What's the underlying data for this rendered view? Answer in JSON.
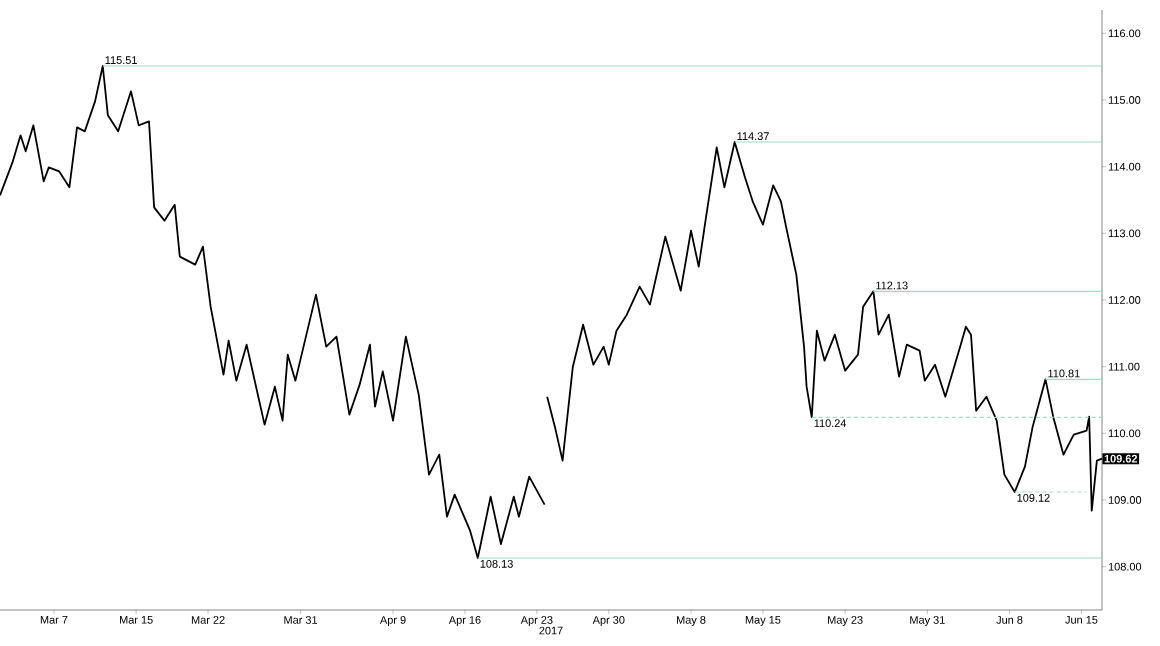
{
  "chart_data": {
    "type": "line",
    "xlabel": "2017",
    "xlim": [
      "2017-03-01T18:00",
      "2017-06-17T00:00"
    ],
    "ylim": [
      107.35,
      116.35
    ],
    "xticks": [
      {
        "value": "2017-03-07",
        "label": "Mar 7"
      },
      {
        "value": "2017-03-15",
        "label": "Mar 15"
      },
      {
        "value": "2017-03-22",
        "label": "Mar 22"
      },
      {
        "value": "2017-03-31",
        "label": "Mar 31"
      },
      {
        "value": "2017-04-09",
        "label": "Apr 9"
      },
      {
        "value": "2017-04-16",
        "label": "Apr 16"
      },
      {
        "value": "2017-04-23",
        "label": "Apr 23"
      },
      {
        "value": "2017-04-30",
        "label": "Apr 30"
      },
      {
        "value": "2017-05-08",
        "label": "May 8"
      },
      {
        "value": "2017-05-15",
        "label": "May 15"
      },
      {
        "value": "2017-05-23",
        "label": "May 23"
      },
      {
        "value": "2017-05-31",
        "label": "May 31"
      },
      {
        "value": "2017-06-08",
        "label": "Jun 8"
      },
      {
        "value": "2017-06-15",
        "label": "Jun 15"
      }
    ],
    "yticks": [
      {
        "value": 108,
        "label": "108.00"
      },
      {
        "value": 109,
        "label": "109.00"
      },
      {
        "value": 110,
        "label": "110.00"
      },
      {
        "value": 111,
        "label": "111.00"
      },
      {
        "value": 112,
        "label": "112.00"
      },
      {
        "value": 113,
        "label": "113.00"
      },
      {
        "value": 114,
        "label": "114.00"
      },
      {
        "value": 115,
        "label": "115.00"
      },
      {
        "value": 116,
        "label": "116.00"
      }
    ],
    "series": [
      {
        "color": "#000000",
        "line_style": "solid",
        "x": [
          "2017-03-01T18:00",
          "2017-03-03T00:00",
          "2017-03-03T18:00",
          "2017-03-04T06:00",
          "2017-03-05T00:00",
          "2017-03-06T00:00",
          "2017-03-06T12:00",
          "2017-03-07T12:00",
          "2017-03-08T12:00",
          "2017-03-09T06:00",
          "2017-03-10T00:00",
          "2017-03-11T00:00",
          "2017-03-11T18:00",
          "2017-03-12T06:00",
          "2017-03-13T06:00",
          "2017-03-14T12:00",
          "2017-03-15T06:00",
          "2017-03-16T06:00",
          "2017-03-16T18:00",
          "2017-03-17T18:00",
          "2017-03-18T18:00",
          "2017-03-19T06:00",
          "2017-03-20T18:00",
          "2017-03-21T12:00",
          "2017-03-22T06:00",
          "2017-03-23T12:00",
          "2017-03-24T00:00",
          "2017-03-24T18:00",
          "2017-03-25T18:00",
          "2017-03-27T12:00",
          "2017-03-28T12:00",
          "2017-03-29T06:00",
          "2017-03-29T18:00",
          "2017-03-30T12:00",
          "2017-04-01T12:00",
          "2017-04-02T12:00",
          "2017-04-03T12:00",
          "2017-04-04T18:00",
          "2017-04-05T18:00",
          "2017-04-06T18:00",
          "2017-04-07T06:00",
          "2017-04-08T00:00",
          "2017-04-09T00:00",
          "2017-04-10T06:00",
          "2017-04-11T12:00",
          "2017-04-12T12:00",
          "2017-04-13T12:00",
          "2017-04-14T06:00",
          "2017-04-15T00:00",
          "2017-04-16T12:00",
          "2017-04-17T06:00",
          "2017-04-18T12:00",
          "2017-04-19T12:00",
          "2017-04-20T18:00",
          "2017-04-21T06:00",
          "2017-04-22T06:00",
          "2017-04-23T18:00",
          "2017-04-23T21:00",
          "2017-04-24T00:00",
          "2017-04-24T18:00",
          "2017-04-25T12:00",
          "2017-04-26T12:00",
          "2017-04-27T12:00",
          "2017-04-28T12:00",
          "2017-04-29T12:00",
          "2017-04-30T00:00",
          "2017-04-30T18:00",
          "2017-05-01T18:00",
          "2017-05-03T00:00",
          "2017-05-04T00:00",
          "2017-05-05T12:00",
          "2017-05-07T00:00",
          "2017-05-08T00:00",
          "2017-05-08T18:00",
          "2017-05-09T12:00",
          "2017-05-10T12:00",
          "2017-05-11T06:00",
          "2017-05-12T06:00",
          "2017-05-13T06:00",
          "2017-05-14T00:00",
          "2017-05-15T00:00",
          "2017-05-16T00:00",
          "2017-05-16T18:00",
          "2017-05-17T06:00",
          "2017-05-18T06:00",
          "2017-05-19T00:00",
          "2017-05-19T06:00",
          "2017-05-19T18:00",
          "2017-05-20T06:00",
          "2017-05-21T00:00",
          "2017-05-22T00:00",
          "2017-05-23T00:00",
          "2017-05-24T06:00",
          "2017-05-24T18:00",
          "2017-05-25T18:00",
          "2017-05-26T06:00",
          "2017-05-27T06:00",
          "2017-05-28T06:00",
          "2017-05-29T00:00",
          "2017-05-30T06:00",
          "2017-05-30T18:00",
          "2017-05-31T18:00",
          "2017-06-01T18:00",
          "2017-06-03T06:00",
          "2017-06-03T18:00",
          "2017-06-04T06:00",
          "2017-06-04T18:00",
          "2017-06-05T18:00",
          "2017-06-06T18:00",
          "2017-06-07T12:00",
          "2017-06-08T12:00",
          "2017-06-09T12:00",
          "2017-06-10T06:00",
          "2017-06-11T12:00",
          "2017-06-12T06:00",
          "2017-06-13T06:00",
          "2017-06-14T06:00",
          "2017-06-15T12:00",
          "2017-06-15T18:00",
          "2017-06-16T00:00",
          "2017-06-16T12:00",
          "2017-06-17T00:00"
        ],
        "values": [
          113.57,
          114.08,
          114.47,
          114.23,
          114.62,
          113.78,
          113.99,
          113.93,
          113.69,
          114.59,
          114.53,
          114.98,
          115.51,
          114.77,
          114.53,
          115.13,
          114.62,
          114.68,
          113.39,
          113.19,
          113.43,
          112.65,
          112.53,
          112.8,
          111.9,
          110.88,
          111.39,
          110.79,
          111.33,
          110.13,
          110.7,
          110.19,
          111.18,
          110.79,
          112.08,
          111.3,
          111.45,
          110.28,
          110.73,
          111.33,
          110.4,
          110.93,
          110.19,
          111.45,
          110.58,
          109.38,
          109.68,
          108.75,
          109.08,
          108.54,
          108.13,
          109.05,
          108.34,
          109.05,
          108.75,
          109.35,
          108.93,
          null,
          110.55,
          110.1,
          109.59,
          111.0,
          111.63,
          111.03,
          111.3,
          111.03,
          111.54,
          111.78,
          112.2,
          111.93,
          112.95,
          112.14,
          113.04,
          112.5,
          113.28,
          114.29,
          113.69,
          114.37,
          113.84,
          113.48,
          113.13,
          113.72,
          113.48,
          113.1,
          112.38,
          111.3,
          110.7,
          110.24,
          111.54,
          111.09,
          111.48,
          110.94,
          111.18,
          111.9,
          112.13,
          111.48,
          111.78,
          110.85,
          111.33,
          111.24,
          110.79,
          111.03,
          110.55,
          111.33,
          111.6,
          111.48,
          110.34,
          110.55,
          110.19,
          109.38,
          109.12,
          109.5,
          110.1,
          110.81,
          110.25,
          109.68,
          109.98,
          110.04,
          110.25,
          108.84,
          109.59,
          109.62
        ]
      },
      {
        "type": "line",
        "color": "#a8d8c8",
        "line_style": "solid",
        "x": [
          "2017-03-11T18:00",
          "2017-06-17T00:00"
        ],
        "values": [
          115.51,
          115.51
        ]
      },
      {
        "type": "line",
        "color": "#a8d8c8",
        "line_style": "solid",
        "x": [
          "2017-05-12T06:00",
          "2017-06-17T00:00"
        ],
        "values": [
          114.37,
          114.37
        ]
      },
      {
        "type": "line",
        "color": "#a8d8c8",
        "line_style": "solid",
        "x": [
          "2017-05-25T18:00",
          "2017-06-17T00:00"
        ],
        "values": [
          112.13,
          112.13
        ]
      },
      {
        "type": "line",
        "color": "#a8d8c8",
        "line_style": "solid",
        "x": [
          "2017-06-11T12:00",
          "2017-06-17T00:00"
        ],
        "values": [
          110.81,
          110.81
        ]
      },
      {
        "type": "line",
        "color": "#a8d8c8",
        "line_style": "solid",
        "x": [
          "2017-04-17T06:00",
          "2017-06-17T00:00"
        ],
        "values": [
          108.13,
          108.13
        ]
      },
      {
        "type": "line",
        "color": "#a8d8c8",
        "line_style": "dashed",
        "x": [
          "2017-05-19T18:00",
          "2017-06-17T00:00"
        ],
        "values": [
          110.24,
          110.24
        ]
      },
      {
        "type": "line",
        "color": "#a8d8c8",
        "line_style": "dashed",
        "x": [
          "2017-06-08T12:00",
          "2017-06-15T12:00"
        ],
        "values": [
          109.12,
          109.12
        ]
      }
    ],
    "annotations": [
      {
        "text": "115.51",
        "x": "2017-03-11T18:00",
        "y": 115.51
      },
      {
        "text": "114.37",
        "x": "2017-05-12T06:00",
        "y": 114.37
      },
      {
        "text": "112.13",
        "x": "2017-05-25T18:00",
        "y": 112.13
      },
      {
        "text": "110.81",
        "x": "2017-06-11T12:00",
        "y": 110.81
      },
      {
        "text": "108.13",
        "x": "2017-04-17T06:00",
        "y": 108.13
      },
      {
        "text": "110.24",
        "x": "2017-05-19T18:00",
        "y": 110.24
      },
      {
        "text": "109.12",
        "x": "2017-06-08T12:00",
        "y": 109.12
      },
      {
        "text": "109.62",
        "x": "2017-06-17T00:00",
        "y": 109.62
      }
    ]
  }
}
